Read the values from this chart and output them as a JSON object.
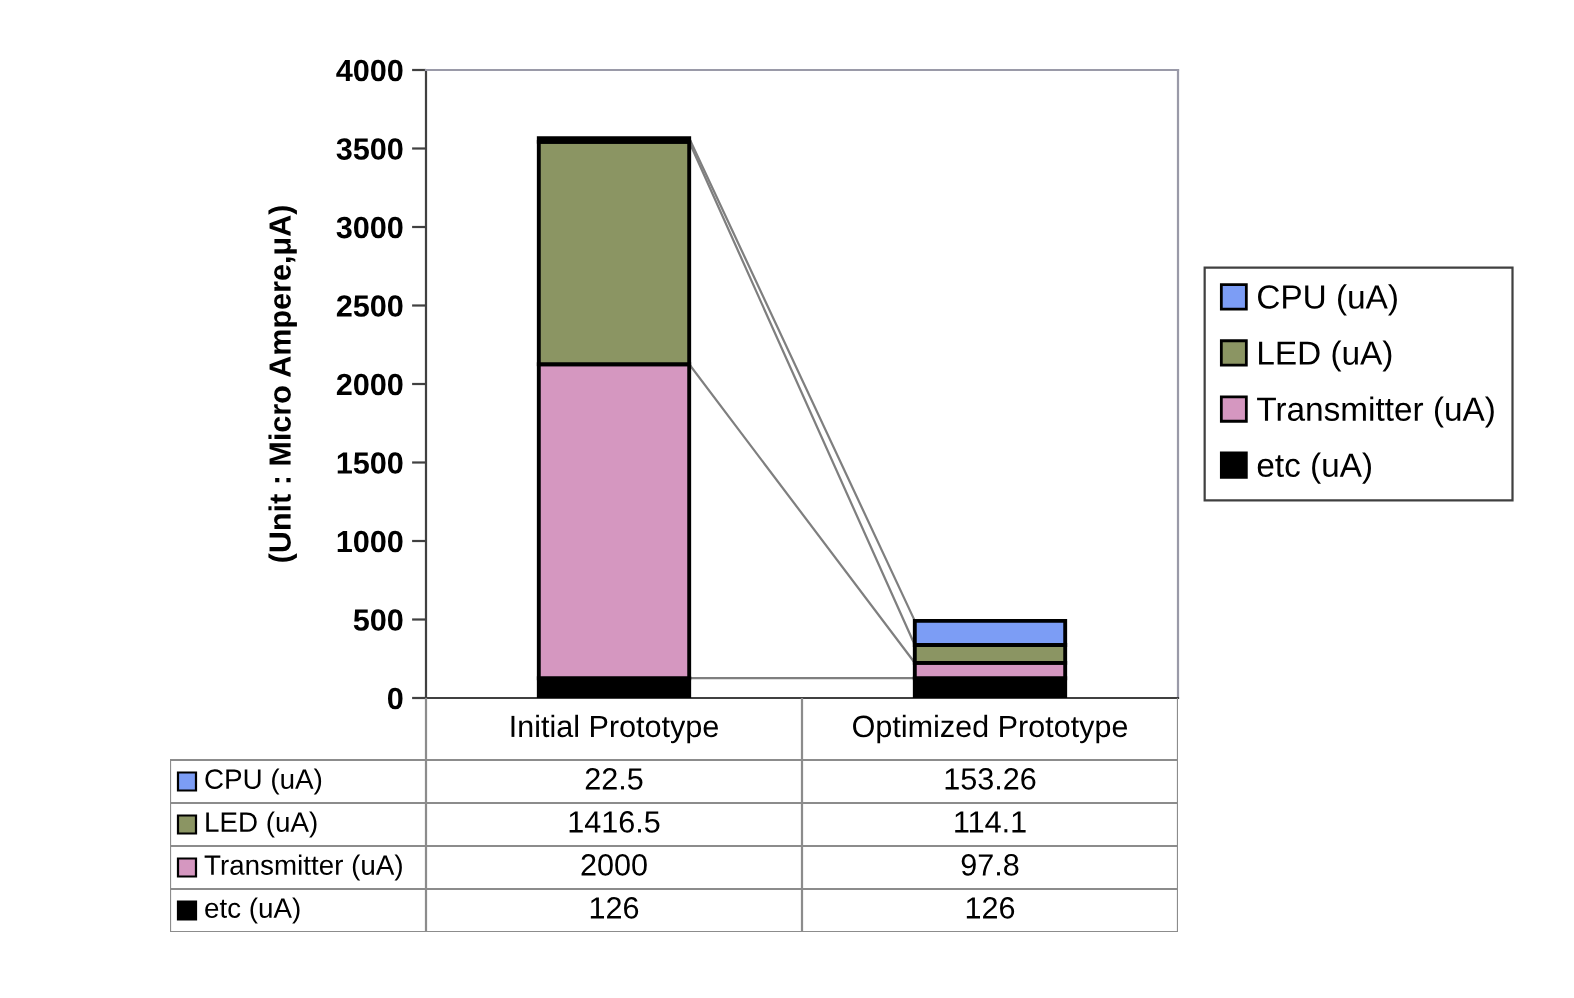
{
  "chart_data": {
    "type": "bar",
    "stacked": true,
    "categories": [
      "Initial Prototype",
      "Optimized Prototype"
    ],
    "series": [
      {
        "name": "etc (uA)",
        "color": "#000000",
        "values": [
          126,
          126
        ]
      },
      {
        "name": "Transmitter (uA)",
        "color": "#d597c0",
        "values": [
          2000,
          97.8
        ]
      },
      {
        "name": "LED (uA)",
        "color": "#8b9563",
        "values": [
          1416.5,
          114.1
        ]
      },
      {
        "name": "CPU (uA)",
        "color": "#7c9df5",
        "values": [
          22.5,
          153.26
        ]
      }
    ],
    "ylabel": "(Unit : Micro Ampere,μA)",
    "ylim": [
      0,
      4000
    ],
    "yticks": [
      0,
      500,
      1000,
      1500,
      2000,
      2500,
      3000,
      3500,
      4000
    ],
    "data_labels": true,
    "legend": "right"
  }
}
